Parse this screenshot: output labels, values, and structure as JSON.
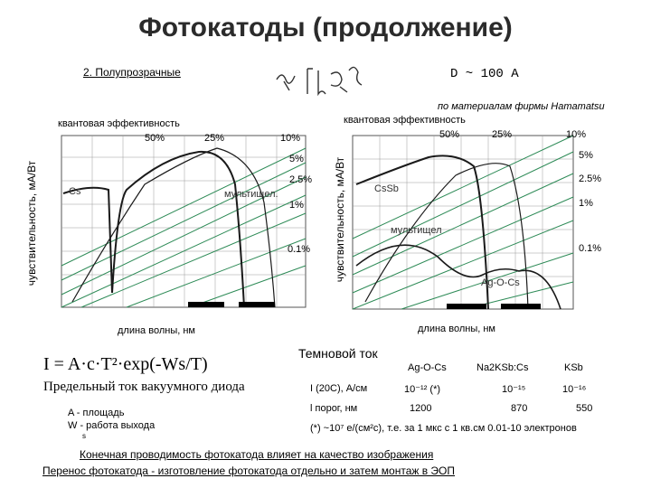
{
  "title": "Фотокатоды (продолжение)",
  "section_label": "2. Полупрозрачные",
  "d_label": "D ~ 100 A",
  "hamamatsu_note": "по материалам фирмы Hamamatsu",
  "left_chart": {
    "top_label": "квантовая эффективность",
    "y_label": "чувствительность, мА/Вт",
    "x_label": "длина волны, нм",
    "qe_labels": [
      "50%",
      "25%",
      "10%",
      "5%",
      "2.5%",
      "1%",
      "0.1%"
    ],
    "curve_labels": [
      "Cs",
      "мультищел."
    ]
  },
  "right_chart": {
    "top_label": "квантовая эффективность",
    "y_label": "чувствительность, мА/Вт",
    "x_label": "длина волны, нм",
    "qe_labels": [
      "50%",
      "25%",
      "10%",
      "5%",
      "2.5%",
      "1%",
      "0.1%"
    ],
    "curve_labels": [
      "CsSb",
      "мультищел",
      "Ag-O-Cs"
    ]
  },
  "formula": {
    "main": "I = A·c·T²·exp(-Ws/T)",
    "note": "Предельный ток вакуумного диода",
    "legend_a": "A - площадь",
    "legend_w": "W - работа выхода",
    "legend_w_sub": "s"
  },
  "dark_current": {
    "heading": "Темновой ток",
    "columns": [
      "Ag-O-Cs",
      "Na2KSb:Cs",
      "KSb"
    ],
    "row1_label": "I (20С), А/см",
    "row1_values": [
      "10⁻¹² (*)",
      "10⁻¹⁵",
      "10⁻¹⁶"
    ],
    "row2_label": "l порог, нм",
    "row2_values": [
      "1200",
      "870",
      "550"
    ],
    "footnote": "(*) ~10⁷ e/(см²с), т.е. за 1 мкс с 1 кв.см 0.01-10 электронов"
  },
  "bottom_lines": [
    "Конечная проводимость фотокатода влияет на качество изображения",
    "Перенос фотокатода - изготовление фотокатода отдельно и затем монтаж в ЭОП"
  ],
  "colors": {
    "grid": "#7a7a7a",
    "qe_line": "#2e8b57",
    "curve": "#1a1a1a",
    "band": "#000000"
  }
}
